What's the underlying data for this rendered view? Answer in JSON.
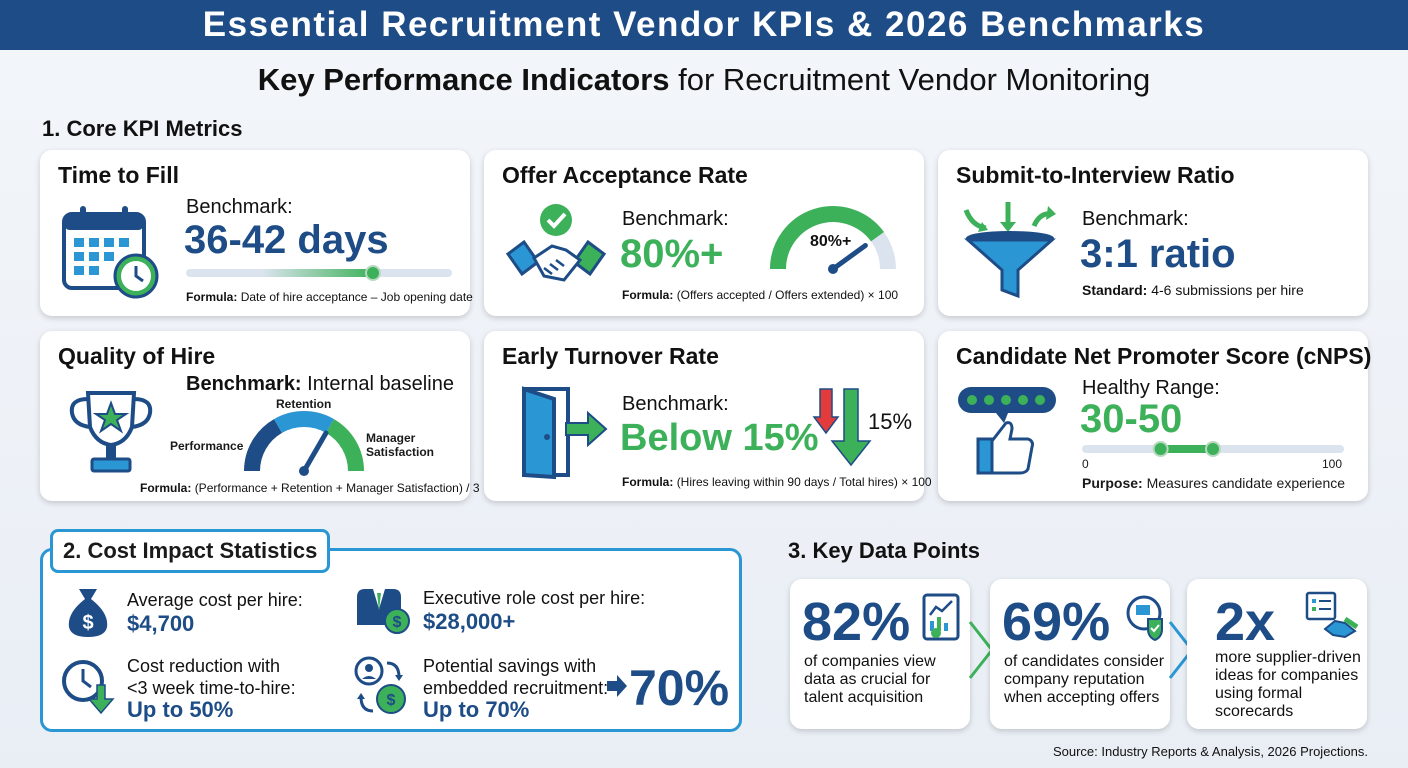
{
  "header": {
    "title": "Essential Recruitment Vendor KPIs & 2026 Benchmarks"
  },
  "subtitle": {
    "bold": "Key Performance Indicators",
    "rest": " for Recruitment Vendor Monitoring"
  },
  "sections": {
    "core": "1. Core KPI Metrics",
    "cost": "2. Cost Impact Statistics",
    "data": "3. Key Data Points"
  },
  "kpis": {
    "time_to_fill": {
      "title": "Time to Fill",
      "bench_label": "Benchmark:",
      "value": "36-42 days",
      "formula_label": "Formula:",
      "formula": "Date of hire acceptance – Job opening date",
      "icon": "calendar-clock-icon"
    },
    "offer_acceptance": {
      "title": "Offer Acceptance Rate",
      "bench_label": "Benchmark:",
      "value": "80%+",
      "gauge_label": "80%+",
      "gauge_level": 0.8,
      "formula_label": "Formula:",
      "formula": "(Offers accepted / Offers extended) × 100",
      "icon": "handshake-check-icon"
    },
    "submit_interview": {
      "title": "Submit-to-Interview Ratio",
      "bench_label": "Benchmark:",
      "value": "3:1 ratio",
      "standard_label": "Standard:",
      "standard": "4-6 submissions per hire",
      "icon": "funnel-icon"
    },
    "quality_of_hire": {
      "title": "Quality of Hire",
      "bench_label": "Benchmark:",
      "bench_value": "Internal baseline",
      "gauge_labels": {
        "left": "Performance",
        "top": "Retention",
        "right_1": "Manager",
        "right_2": "Satisfaction"
      },
      "formula_label": "Formula:",
      "formula": "(Performance + Retention + Manager Satisfaction) / 3",
      "icon": "trophy-icon"
    },
    "early_turnover": {
      "title": "Early Turnover Rate",
      "bench_label": "Benchmark:",
      "value": "Below 15%",
      "arrow_label": "15%",
      "formula_label": "Formula:",
      "formula": "(Hires leaving within 90 days / Total hires) × 100",
      "icon": "exit-door-icon"
    },
    "cnps": {
      "title": "Candidate Net Promoter Score (cNPS)",
      "range_label": "Healthy Range:",
      "value": "30-50",
      "scale_min": "0",
      "scale_max": "100",
      "range_low": 30,
      "range_high": 50,
      "purpose_label": "Purpose:",
      "purpose": "Measures candidate experience",
      "icon": "thumbs-up-stars-icon"
    }
  },
  "cost": {
    "avg_label": "Average cost per hire:",
    "avg_value": "$4,700",
    "exec_label": "Executive role cost per hire:",
    "exec_value": "$28,000+",
    "reduction_label_1": "Cost reduction with",
    "reduction_label_2": "<3 week time-to-hire:",
    "reduction_value": "Up to 50%",
    "savings_label_1": "Potential savings with",
    "savings_label_2": "embedded recruitment:",
    "savings_value": "Up to 70%",
    "savings_big": "70%"
  },
  "data_points": [
    {
      "value": "82%",
      "text": "of companies view data as crucial for talent acquisition",
      "icon": "report-chart-icon"
    },
    {
      "value": "69%",
      "text": "of candidates consider company reputation when accepting offers",
      "icon": "reputation-shield-icon"
    },
    {
      "value": "2x",
      "text": "more supplier-driven ideas for companies using formal scorecards",
      "icon": "scorecard-handshake-icon"
    }
  ],
  "source": "Source: Industry Reports & Analysis, 2026 Projections.",
  "colors": {
    "navy": "#1d4c86",
    "green": "#3db15a",
    "blue": "#2a96d4"
  }
}
